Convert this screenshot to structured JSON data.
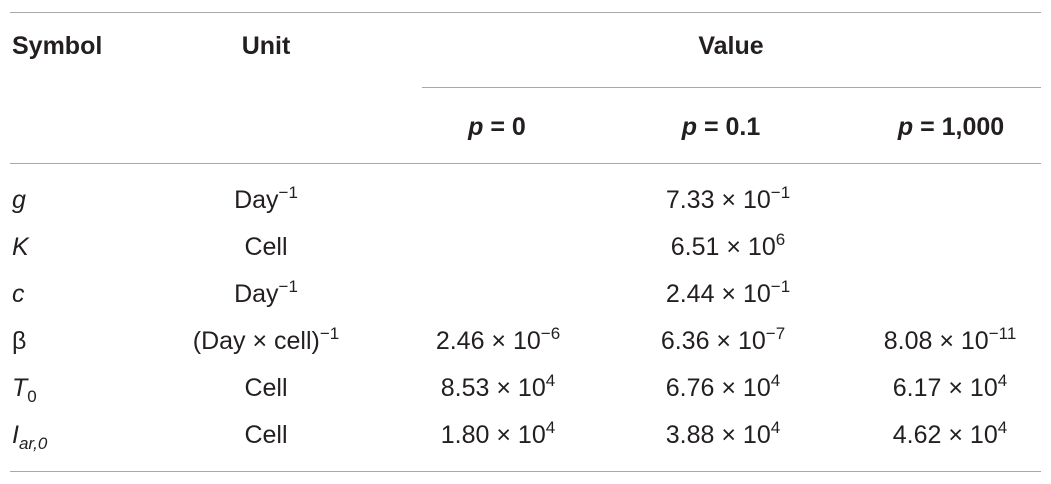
{
  "header": {
    "symbol": "Symbol",
    "unit": "Unit",
    "value": "Value",
    "p_label": "p",
    "p_cols": [
      "= 0",
      "= 0.1",
      "= 1,000"
    ]
  },
  "rows": [
    {
      "symbol": "g",
      "symbol_sub": "",
      "unit": "Day",
      "unit_sup": "−1",
      "shared": {
        "mant": "7.33 × 10",
        "exp": "−1"
      }
    },
    {
      "symbol": "K",
      "symbol_sub": "",
      "unit": "Cell",
      "unit_sup": "",
      "shared": {
        "mant": "6.51 × 10",
        "exp": "6"
      }
    },
    {
      "symbol": "c",
      "symbol_sub": "",
      "unit": "Day",
      "unit_sup": "−1",
      "shared": {
        "mant": "2.44 × 10",
        "exp": "−1"
      }
    },
    {
      "symbol": "β",
      "symbol_sub": "",
      "unit": "(Day × cell)",
      "unit_sup": "−1",
      "values": [
        {
          "mant": "2.46 × 10",
          "exp": "−6"
        },
        {
          "mant": "6.36 × 10",
          "exp": "−7"
        },
        {
          "mant": "8.08 × 10",
          "exp": "−11"
        }
      ]
    },
    {
      "symbol": "T",
      "symbol_sub": "0",
      "unit": "Cell",
      "unit_sup": "",
      "values": [
        {
          "mant": "8.53 × 10",
          "exp": "4"
        },
        {
          "mant": "6.76 × 10",
          "exp": "4"
        },
        {
          "mant": "6.17 × 10",
          "exp": "4"
        }
      ]
    },
    {
      "symbol": "I",
      "symbol_sub": "ar,0",
      "unit": "Cell",
      "unit_sup": "",
      "values": [
        {
          "mant": "1.80 × 10",
          "exp": "4"
        },
        {
          "mant": "3.88 × 10",
          "exp": "4"
        },
        {
          "mant": "4.62 × 10",
          "exp": "4"
        }
      ]
    }
  ]
}
